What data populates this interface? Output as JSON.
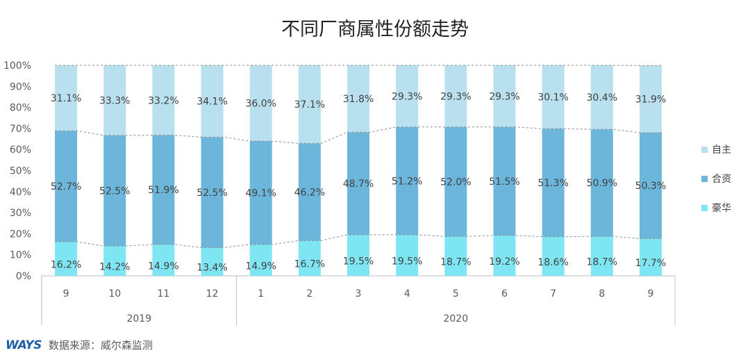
{
  "chart_data": {
    "type": "bar",
    "title": "不同厂商属性份额走势",
    "categories": [
      "9",
      "10",
      "11",
      "12",
      "1",
      "2",
      "3",
      "4",
      "5",
      "6",
      "7",
      "8",
      "9"
    ],
    "year_groups": [
      {
        "label": "2019",
        "count": 4
      },
      {
        "label": "2020",
        "count": 9
      }
    ],
    "ylim": [
      0,
      100
    ],
    "yticks": [
      "0%",
      "10%",
      "20%",
      "30%",
      "40%",
      "50%",
      "60%",
      "70%",
      "80%",
      "90%",
      "100%"
    ],
    "stacked": true,
    "series": [
      {
        "name": "豪华",
        "color": "#7ee6f2",
        "values": [
          16.2,
          14.2,
          14.9,
          13.4,
          14.9,
          16.7,
          19.5,
          19.5,
          18.7,
          19.2,
          18.6,
          18.7,
          17.7
        ],
        "labels": [
          "16.2%",
          "14.2%",
          "14.9%",
          "13.4%",
          "14.9%",
          "16.7%",
          "19.5%",
          "19.5%",
          "18.7%",
          "19.2%",
          "18.6%",
          "18.7%",
          "17.7%"
        ]
      },
      {
        "name": "合资",
        "color": "#6db6db",
        "values": [
          52.7,
          52.5,
          51.9,
          52.5,
          49.1,
          46.2,
          48.7,
          51.2,
          52.0,
          51.5,
          51.3,
          50.9,
          50.3
        ],
        "labels": [
          "52.7%",
          "52.5%",
          "51.9%",
          "52.5%",
          "49.1%",
          "46.2%",
          "48.7%",
          "51.2%",
          "52.0%",
          "51.5%",
          "51.3%",
          "50.9%",
          "50.3%"
        ]
      },
      {
        "name": "自主",
        "color": "#b9e0ef",
        "values": [
          31.1,
          33.3,
          33.2,
          34.1,
          36.0,
          37.1,
          31.8,
          29.3,
          29.3,
          29.3,
          30.1,
          30.4,
          31.9
        ],
        "labels": [
          "31.1%",
          "33.3%",
          "33.2%",
          "34.1%",
          "36.0%",
          "37.1%",
          "31.8%",
          "29.3%",
          "29.3%",
          "29.3%",
          "30.1%",
          "30.4%",
          "31.9%"
        ]
      }
    ],
    "legend": {
      "placement": "right",
      "order": [
        "自主",
        "合资",
        "豪华"
      ]
    },
    "grid": false
  },
  "source": {
    "logo": "WAYS",
    "text": "数据来源：威尔森监测"
  }
}
